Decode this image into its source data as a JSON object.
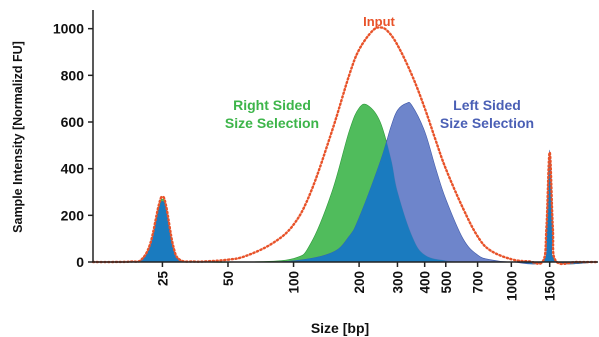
{
  "chart_data": {
    "type": "area",
    "title": "",
    "xlabel": "Size [bp]",
    "ylabel": "Sample Intensity [Normalizd FU]",
    "x_scale": "log",
    "xlim": [
      12,
      2500
    ],
    "ylim": [
      0,
      1080
    ],
    "grid": false,
    "legend": "none",
    "x_ticks": [
      25,
      50,
      100,
      200,
      300,
      400,
      500,
      700,
      1000,
      1500
    ],
    "x_tick_labels": [
      "25",
      "50",
      "100",
      "200",
      "300",
      "400",
      "500",
      "700",
      "1000",
      "1500"
    ],
    "y_ticks": [
      0,
      200,
      400,
      600,
      800,
      1000
    ],
    "y_tick_labels": [
      "0",
      "200",
      "400",
      "600",
      "800",
      "1000"
    ],
    "series": [
      {
        "name": "Input",
        "style": "dotted-line",
        "color": "#e8532a",
        "x": [
          12,
          15,
          18,
          20,
          22,
          24,
          25,
          26,
          28,
          30,
          35,
          40,
          50,
          60,
          80,
          100,
          120,
          150,
          180,
          200,
          230,
          250,
          270,
          300,
          350,
          400,
          450,
          500,
          600,
          700,
          800,
          1000,
          1200,
          1400,
          1450,
          1500,
          1550,
          1600,
          2000,
          2500
        ],
        "y": [
          0,
          0,
          2,
          10,
          80,
          240,
          280,
          240,
          70,
          10,
          2,
          3,
          10,
          25,
          80,
          160,
          300,
          560,
          800,
          910,
          990,
          1005,
          990,
          930,
          800,
          660,
          520,
          400,
          230,
          110,
          50,
          12,
          3,
          5,
          150,
          470,
          150,
          5,
          0,
          0
        ]
      },
      {
        "name": "Right Sided Size Selection",
        "style": "filled-area",
        "color": "#3db54a",
        "x": [
          12,
          15,
          18,
          20,
          22,
          24,
          25,
          26,
          28,
          30,
          35,
          60,
          100,
          120,
          150,
          180,
          200,
          220,
          250,
          280,
          300,
          350,
          400,
          500,
          600,
          1000,
          1400,
          1450,
          1500,
          1550,
          1600,
          2500
        ],
        "y": [
          0,
          0,
          2,
          10,
          70,
          230,
          270,
          230,
          60,
          8,
          0,
          0,
          15,
          80,
          300,
          560,
          660,
          670,
          600,
          440,
          300,
          110,
          30,
          5,
          0,
          0,
          5,
          150,
          460,
          150,
          5,
          0
        ]
      },
      {
        "name": "Left Sided Size Selection",
        "style": "filled-area",
        "color": "#5a74c4",
        "x": [
          12,
          15,
          18,
          20,
          22,
          24,
          25,
          26,
          28,
          30,
          35,
          60,
          100,
          150,
          180,
          200,
          250,
          280,
          300,
          330,
          350,
          400,
          450,
          500,
          600,
          700,
          800,
          1000,
          1400,
          1450,
          1500,
          1550,
          1600,
          2500
        ],
        "y": [
          0,
          0,
          2,
          10,
          70,
          220,
          260,
          220,
          60,
          8,
          0,
          0,
          5,
          40,
          110,
          190,
          430,
          580,
          650,
          680,
          670,
          560,
          400,
          270,
          100,
          30,
          10,
          0,
          5,
          150,
          480,
          150,
          5,
          0
        ]
      }
    ],
    "annotations": [
      {
        "text": "Input",
        "color": "#e8532a"
      },
      {
        "text": "Right Sided",
        "color": "#3db54a"
      },
      {
        "text": "Size Selection",
        "color": "#3db54a"
      },
      {
        "text": "Left Sided",
        "color": "#4a5fb5"
      },
      {
        "text": "Size Selection",
        "color": "#4a5fb5"
      }
    ],
    "overlap_color": "#1a7bbf",
    "axis_color": "#222222"
  }
}
